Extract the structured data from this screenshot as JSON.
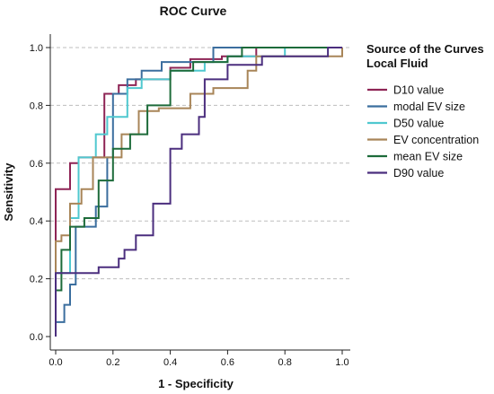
{
  "chart_data": {
    "type": "line",
    "title": "ROC Curve",
    "xlabel": "1 - Specificity",
    "ylabel": "Sensitivity",
    "xlim": [
      0,
      1.0
    ],
    "ylim": [
      0,
      1.0
    ],
    "xticks": [
      "0.0",
      "0.2",
      "0.4",
      "0.6",
      "0.8",
      "1.0"
    ],
    "yticks": [
      "0.0",
      "0.2",
      "0.4",
      "0.6",
      "0.8",
      "1.0"
    ],
    "grid": "horizontal dashed",
    "legend": {
      "title_lines": [
        "Source of the Curves",
        "Local Fluid"
      ],
      "placement": "right"
    },
    "series": [
      {
        "name": "D10 value",
        "color": "#8e2455",
        "points": [
          [
            0.0,
            0.0
          ],
          [
            0.0,
            0.51
          ],
          [
            0.05,
            0.51
          ],
          [
            0.05,
            0.6
          ],
          [
            0.08,
            0.6
          ],
          [
            0.08,
            0.62
          ],
          [
            0.17,
            0.62
          ],
          [
            0.17,
            0.84
          ],
          [
            0.22,
            0.84
          ],
          [
            0.22,
            0.87
          ],
          [
            0.28,
            0.87
          ],
          [
            0.28,
            0.89
          ],
          [
            0.4,
            0.89
          ],
          [
            0.4,
            0.93
          ],
          [
            0.47,
            0.93
          ],
          [
            0.47,
            0.96
          ],
          [
            0.58,
            0.96
          ],
          [
            0.58,
            0.97
          ],
          [
            0.7,
            0.97
          ],
          [
            0.7,
            1.0
          ],
          [
            1.0,
            1.0
          ]
        ]
      },
      {
        "name": "modal EV size",
        "color": "#3b6e9e",
        "points": [
          [
            0.0,
            0.0
          ],
          [
            0.0,
            0.05
          ],
          [
            0.03,
            0.05
          ],
          [
            0.03,
            0.11
          ],
          [
            0.05,
            0.11
          ],
          [
            0.05,
            0.18
          ],
          [
            0.07,
            0.18
          ],
          [
            0.07,
            0.38
          ],
          [
            0.14,
            0.38
          ],
          [
            0.14,
            0.45
          ],
          [
            0.18,
            0.45
          ],
          [
            0.18,
            0.62
          ],
          [
            0.2,
            0.62
          ],
          [
            0.2,
            0.84
          ],
          [
            0.25,
            0.84
          ],
          [
            0.25,
            0.89
          ],
          [
            0.3,
            0.89
          ],
          [
            0.3,
            0.92
          ],
          [
            0.37,
            0.92
          ],
          [
            0.37,
            0.95
          ],
          [
            0.55,
            0.95
          ],
          [
            0.55,
            1.0
          ],
          [
            1.0,
            1.0
          ]
        ]
      },
      {
        "name": "D50 value",
        "color": "#4fc8cf",
        "points": [
          [
            0.0,
            0.0
          ],
          [
            0.0,
            0.22
          ],
          [
            0.05,
            0.22
          ],
          [
            0.05,
            0.41
          ],
          [
            0.08,
            0.41
          ],
          [
            0.08,
            0.62
          ],
          [
            0.14,
            0.62
          ],
          [
            0.14,
            0.7
          ],
          [
            0.18,
            0.7
          ],
          [
            0.18,
            0.76
          ],
          [
            0.25,
            0.76
          ],
          [
            0.25,
            0.86
          ],
          [
            0.3,
            0.86
          ],
          [
            0.3,
            0.89
          ],
          [
            0.4,
            0.89
          ],
          [
            0.4,
            0.92
          ],
          [
            0.52,
            0.92
          ],
          [
            0.52,
            0.95
          ],
          [
            0.6,
            0.95
          ],
          [
            0.6,
            0.97
          ],
          [
            0.8,
            0.97
          ],
          [
            0.8,
            1.0
          ],
          [
            1.0,
            1.0
          ]
        ]
      },
      {
        "name": "EV concentration",
        "color": "#a88558",
        "points": [
          [
            0.0,
            0.0
          ],
          [
            0.0,
            0.33
          ],
          [
            0.02,
            0.33
          ],
          [
            0.02,
            0.35
          ],
          [
            0.05,
            0.35
          ],
          [
            0.05,
            0.46
          ],
          [
            0.09,
            0.46
          ],
          [
            0.09,
            0.51
          ],
          [
            0.13,
            0.51
          ],
          [
            0.13,
            0.62
          ],
          [
            0.23,
            0.62
          ],
          [
            0.23,
            0.7
          ],
          [
            0.29,
            0.7
          ],
          [
            0.29,
            0.78
          ],
          [
            0.36,
            0.78
          ],
          [
            0.36,
            0.79
          ],
          [
            0.47,
            0.79
          ],
          [
            0.47,
            0.84
          ],
          [
            0.55,
            0.84
          ],
          [
            0.55,
            0.86
          ],
          [
            0.67,
            0.86
          ],
          [
            0.67,
            0.92
          ],
          [
            0.7,
            0.92
          ],
          [
            0.7,
            0.97
          ],
          [
            1.0,
            0.97
          ],
          [
            1.0,
            1.0
          ]
        ]
      },
      {
        "name": "mean EV size",
        "color": "#1d6b3a",
        "points": [
          [
            0.0,
            0.0
          ],
          [
            0.0,
            0.16
          ],
          [
            0.02,
            0.16
          ],
          [
            0.02,
            0.3
          ],
          [
            0.05,
            0.3
          ],
          [
            0.05,
            0.38
          ],
          [
            0.1,
            0.38
          ],
          [
            0.1,
            0.41
          ],
          [
            0.15,
            0.41
          ],
          [
            0.15,
            0.54
          ],
          [
            0.2,
            0.54
          ],
          [
            0.2,
            0.65
          ],
          [
            0.26,
            0.65
          ],
          [
            0.26,
            0.7
          ],
          [
            0.32,
            0.7
          ],
          [
            0.32,
            0.8
          ],
          [
            0.4,
            0.8
          ],
          [
            0.4,
            0.92
          ],
          [
            0.48,
            0.92
          ],
          [
            0.48,
            0.95
          ],
          [
            0.6,
            0.95
          ],
          [
            0.6,
            0.97
          ],
          [
            0.65,
            0.97
          ],
          [
            0.65,
            1.0
          ],
          [
            1.0,
            1.0
          ]
        ]
      },
      {
        "name": "D90 value",
        "color": "#4b2e7e",
        "points": [
          [
            0.0,
            0.0
          ],
          [
            0.0,
            0.22
          ],
          [
            0.15,
            0.22
          ],
          [
            0.15,
            0.24
          ],
          [
            0.22,
            0.24
          ],
          [
            0.22,
            0.27
          ],
          [
            0.24,
            0.27
          ],
          [
            0.24,
            0.3
          ],
          [
            0.28,
            0.3
          ],
          [
            0.28,
            0.35
          ],
          [
            0.34,
            0.35
          ],
          [
            0.34,
            0.46
          ],
          [
            0.4,
            0.46
          ],
          [
            0.4,
            0.65
          ],
          [
            0.44,
            0.65
          ],
          [
            0.44,
            0.7
          ],
          [
            0.5,
            0.7
          ],
          [
            0.5,
            0.76
          ],
          [
            0.52,
            0.76
          ],
          [
            0.52,
            0.89
          ],
          [
            0.6,
            0.89
          ],
          [
            0.6,
            0.94
          ],
          [
            0.72,
            0.94
          ],
          [
            0.72,
            0.97
          ],
          [
            0.95,
            0.97
          ],
          [
            0.95,
            1.0
          ],
          [
            1.0,
            1.0
          ]
        ]
      }
    ]
  }
}
